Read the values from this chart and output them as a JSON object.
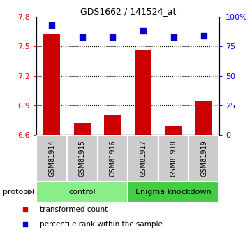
{
  "title": "GDS1662 / 141524_at",
  "samples": [
    "GSM81914",
    "GSM81915",
    "GSM81916",
    "GSM81917",
    "GSM81918",
    "GSM81919"
  ],
  "bar_values": [
    7.63,
    6.72,
    6.8,
    7.47,
    6.69,
    6.95
  ],
  "dot_values": [
    93,
    83,
    83,
    88,
    83,
    84
  ],
  "ylim_left": [
    6.6,
    7.8
  ],
  "ylim_right": [
    0,
    100
  ],
  "yticks_left": [
    6.6,
    6.9,
    7.2,
    7.5,
    7.8
  ],
  "yticks_right": [
    0,
    25,
    50,
    75,
    100
  ],
  "ytick_labels_left": [
    "6.6",
    "6.9",
    "7.2",
    "7.5",
    "7.8"
  ],
  "ytick_labels_right": [
    "0",
    "25",
    "50",
    "75",
    "100%"
  ],
  "hlines": [
    7.5,
    7.2,
    6.9
  ],
  "bar_color": "#cc0000",
  "dot_color": "#0000cc",
  "bar_bottom": 6.6,
  "groups": [
    {
      "label": "control",
      "indices": [
        0,
        1,
        2
      ],
      "color": "#88ee88"
    },
    {
      "label": "Enigma knockdown",
      "indices": [
        3,
        4,
        5
      ],
      "color": "#44cc44"
    }
  ],
  "protocol_label": "protocol",
  "legend_bar_label": "transformed count",
  "legend_dot_label": "percentile rank within the sample",
  "sample_box_color": "#cccccc",
  "sample_box_edge": "#ffffff",
  "bar_width": 0.55,
  "dot_size": 28,
  "title_fontsize": 9,
  "axis_fontsize": 8,
  "sample_fontsize": 7,
  "group_fontsize": 8,
  "legend_fontsize": 7.5
}
